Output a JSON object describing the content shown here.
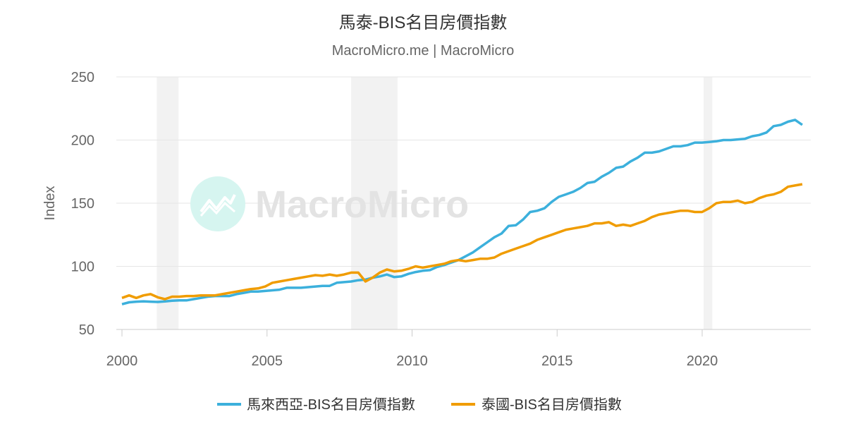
{
  "chart_data": {
    "type": "line",
    "title": "馬泰-BIS名目房價指數",
    "subtitle": "MacroMicro.me | MacroMicro",
    "watermark": "MacroMicro",
    "ylabel": "Index",
    "xlabel": "",
    "ylim": [
      50,
      250
    ],
    "yticks": [
      50,
      100,
      150,
      200,
      250
    ],
    "xlim": [
      2000,
      2023.75
    ],
    "xticks": [
      2000,
      2005,
      2010,
      2015,
      2020
    ],
    "grid": true,
    "legend_position": "bottom",
    "x_start": 2000,
    "x_step": 0.25,
    "recessions": [
      [
        2001.2,
        2001.95
      ],
      [
        2007.9,
        2009.5
      ],
      [
        2020.05,
        2020.35
      ]
    ],
    "series": [
      {
        "name": "馬來西亞-BIS名目房價指數",
        "color": "#3cb0dc",
        "values": [
          70,
          71.5,
          72,
          72.3,
          72,
          71.8,
          72.2,
          72.8,
          73,
          73,
          74,
          75,
          76,
          76.5,
          76.5,
          76.5,
          78,
          79,
          80,
          80,
          80.5,
          81,
          81.5,
          83,
          83,
          83,
          83.5,
          84,
          84.5,
          84.5,
          87,
          87.5,
          88,
          89,
          89.5,
          91,
          92,
          93.5,
          91.5,
          92,
          94,
          95.5,
          96.5,
          97,
          99.5,
          101,
          103,
          105,
          108,
          111,
          115,
          119,
          123,
          126,
          132,
          132.5,
          137,
          143,
          144,
          146,
          151,
          155,
          157,
          159,
          162,
          166,
          167,
          171,
          174,
          178,
          179,
          183,
          186,
          190,
          190,
          191,
          193,
          195,
          195,
          196,
          198,
          198,
          198.5,
          199,
          200,
          200,
          200.5,
          201,
          203,
          204,
          206,
          211,
          212,
          214.5,
          216,
          212
        ]
      },
      {
        "name": "泰國-BIS名目房價指數",
        "color": "#f09c00",
        "values": [
          75,
          77,
          75,
          77,
          78,
          75.5,
          74,
          76,
          76,
          76.5,
          76.5,
          77,
          77,
          77,
          78,
          79,
          80,
          81,
          82,
          82.5,
          84,
          87,
          88,
          89,
          90,
          91,
          92,
          93,
          92.5,
          93.5,
          92.5,
          93.5,
          95,
          95,
          88,
          91,
          95,
          97.5,
          96,
          96.5,
          98,
          100,
          99,
          100,
          101,
          102,
          104,
          105,
          104,
          105,
          106,
          106,
          107,
          110,
          112,
          114,
          116,
          118,
          121,
          123,
          125,
          127,
          129,
          130,
          131,
          132,
          134,
          134,
          135,
          132,
          133,
          132,
          134,
          136,
          139,
          141,
          142,
          143,
          144,
          144,
          143,
          143,
          146,
          150,
          151,
          151,
          152,
          150,
          151,
          154,
          156,
          157,
          159,
          163,
          164,
          165
        ]
      }
    ]
  }
}
